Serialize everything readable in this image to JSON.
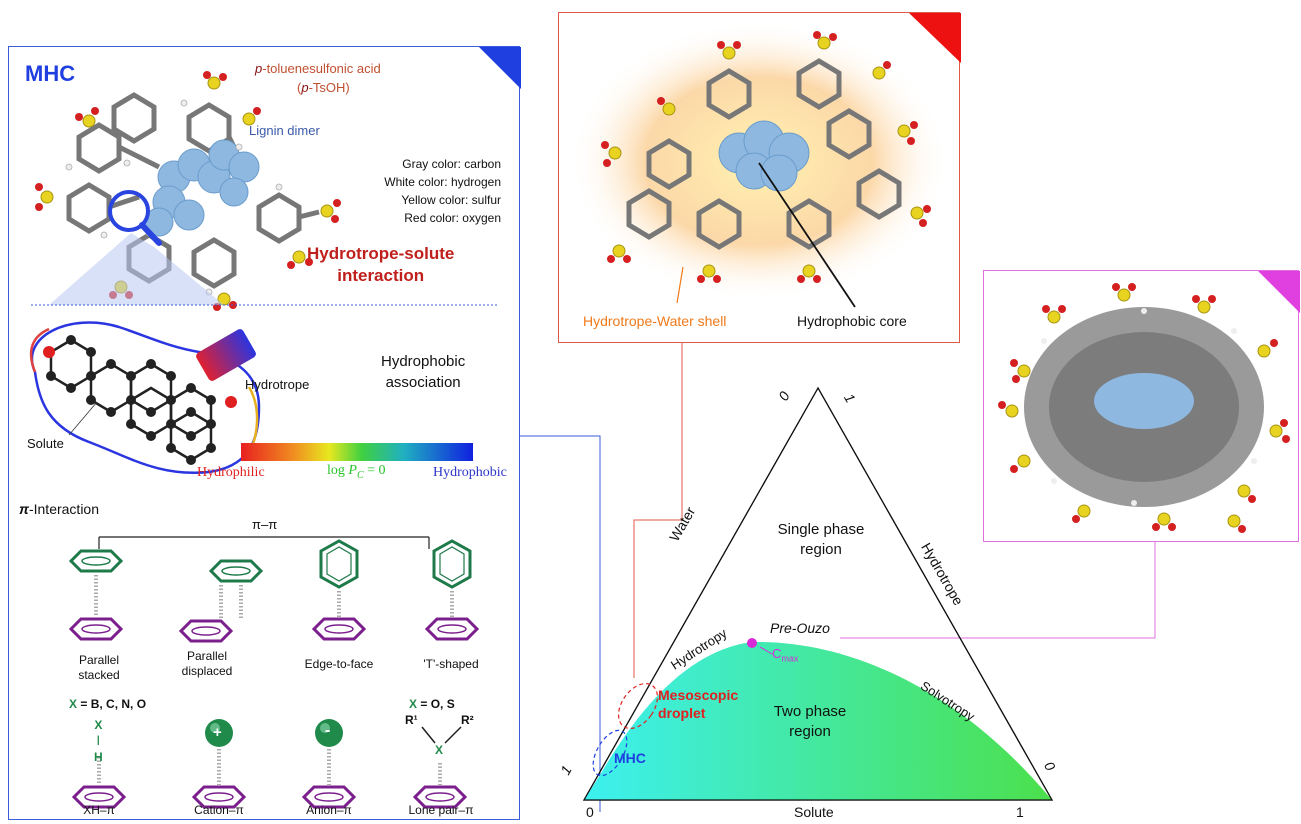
{
  "mhc_panel": {
    "title": "MHC",
    "molecule_name_italic": "p",
    "molecule_name": "-toluenesulfonic acid",
    "molecule_abbrev_open": "(",
    "molecule_abbrev_italic": "p",
    "molecule_abbrev": "-TsOH)",
    "lignin_label": "Lignin dimer",
    "color_key": [
      "Gray color: carbon",
      "White color: hydrogen",
      "Yellow color: sulfur",
      "Red color: oxygen"
    ],
    "interaction_line1": "Hydrotrope-solute",
    "interaction_line2": "interaction",
    "hydrotrope_label": "Hydrotrope",
    "association_line1": "Hydrophobic",
    "association_line2": "association",
    "solute_label": "Solute",
    "scale_left": "Hydrophilic",
    "scale_mid_prefix": "log ",
    "scale_mid_var": "P",
    "scale_mid_sub": "C",
    "scale_mid_suffix": " = 0",
    "scale_right": "Hydrophobic",
    "pi_title_sym": "π",
    "pi_title": "-Interaction",
    "pi_pi": "π–π",
    "stack_labels": [
      {
        "line1": "Parallel",
        "line2": "stacked"
      },
      {
        "line1": "Parallel",
        "line2": "displaced"
      },
      {
        "line1": "Edge-to-face",
        "line2": ""
      },
      {
        "line1": "'T'-shaped",
        "line2": ""
      }
    ],
    "x_def_left_var": "X",
    "x_def_left": " = B, C, N, O",
    "x_def_right_var": "X",
    "x_def_right": " = O, S",
    "xh_x": "X",
    "xh_h": "H",
    "cation_sign": "+",
    "anion_sign": "-",
    "lone_r1": "R¹",
    "lone_r2": "R²",
    "lone_x": "X",
    "bottom_labels": [
      "XH–π",
      "Cation–π",
      "Anion–π",
      "Lone pair–π"
    ]
  },
  "shell_panel": {
    "shell_label": "Hydrotrope-Water shell",
    "core_label": "Hydrophobic core"
  },
  "ternary": {
    "corner_top_left": "0",
    "corner_top_right": "1",
    "side_left": "Water",
    "side_right": "Hydrotrope",
    "single_line1": "Single phase",
    "single_line2": "region",
    "hydrotropy": "Hydrotropy",
    "pre_ouzo": "Pre-Ouzo",
    "cmax": "C",
    "cmax_sub": "max",
    "mesoscopic_line1": "Mesoscopic",
    "mesoscopic_line2": "droplet",
    "two_line1": "Two phase",
    "two_line2": "region",
    "solvotropy": "Solvotropy",
    "mhc": "MHC",
    "left_1": "1",
    "right_0": "0",
    "bottom_0": "0",
    "bottom_label": "Solute",
    "bottom_1": "1"
  },
  "colors": {
    "mhc_blue": "#1f3fe0",
    "interaction_red": "#c0201c",
    "shell_orange": "#f07a1a",
    "pre_ouzo_magenta": "#d82bd8",
    "hydrophilic_red": "#e02020",
    "logp_green": "#27c427",
    "hydrophobic_blue": "#2b35c8",
    "ring_green": "#1f7a4a",
    "ring_purple": "#7a1f8c"
  }
}
